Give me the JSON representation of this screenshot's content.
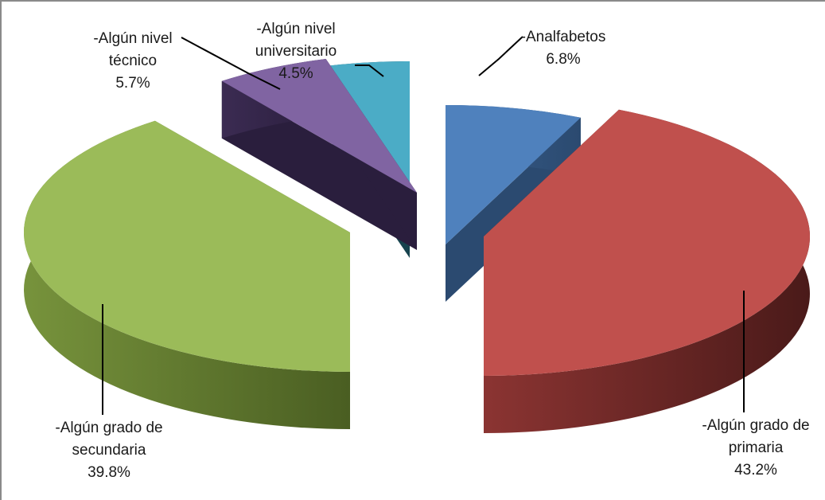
{
  "chart_data": {
    "type": "pie",
    "title": "",
    "legend": "none",
    "slices": [
      {
        "name": "-Analfabetos",
        "value": 6.8,
        "label_lines": [
          "-Analfabetos",
          "6.8%"
        ],
        "color": "#4f81bd",
        "side": "#385d8a",
        "dark": "#2b4a70"
      },
      {
        "name": "-Algún grado de primaria",
        "value": 43.2,
        "label_lines": [
          "-Algún grado de",
          "primaria",
          "43.2%"
        ],
        "color": "#c0504d",
        "side": "#8b3432",
        "dark": "#4a1a19"
      },
      {
        "name": "-Algún grado de secundaria",
        "value": 39.8,
        "label_lines": [
          "-Algún grado de",
          "secundaria",
          "39.8%"
        ],
        "color": "#9bbb59",
        "side": "#77933c",
        "dark": "#4a5e22"
      },
      {
        "name": "-Algún nivel técnico",
        "value": 5.7,
        "label_lines": [
          "-Algún nivel",
          "técnico",
          "5.7%"
        ],
        "color": "#8064a2",
        "side": "#3b2b52",
        "dark": "#2a1e3d"
      },
      {
        "name": "-Algún nivel universitario",
        "value": 4.5,
        "label_lines": [
          "-Algún nivel",
          "universitario",
          "4.5%"
        ],
        "color": "#4bacc6",
        "side": "#1f5a68",
        "dark": "#17434e"
      }
    ]
  }
}
